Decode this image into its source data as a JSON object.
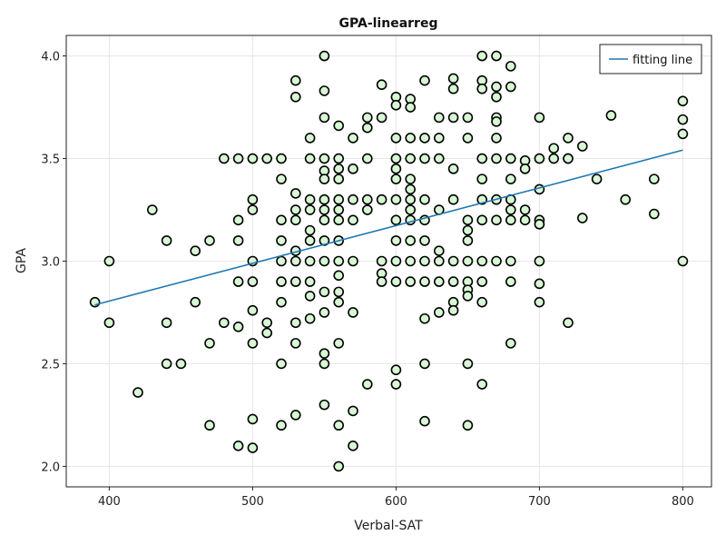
{
  "chart_data": {
    "type": "scatter",
    "title": "GPA-linearreg",
    "xlabel": "Verbal-SAT",
    "ylabel": "GPA",
    "xlim": [
      370,
      820
    ],
    "ylim": [
      1.9,
      4.1
    ],
    "xticks": [
      400,
      500,
      600,
      700,
      800
    ],
    "yticks": [
      2.0,
      2.5,
      3.0,
      3.5,
      4.0
    ],
    "ytick_labels": [
      "2.0",
      "2.5",
      "3.0",
      "3.5",
      "4.0"
    ],
    "grid": true,
    "legend_position": "top-right",
    "colors": {
      "point_fill": "#d8f7d4",
      "point_edge": "#000000",
      "line": "#1f77b4"
    },
    "series": [
      {
        "type": "scatter",
        "points": [
          [
            390,
            2.8
          ],
          [
            400,
            3.0
          ],
          [
            400,
            2.7
          ],
          [
            420,
            2.36
          ],
          [
            430,
            3.25
          ],
          [
            440,
            3.1
          ],
          [
            440,
            2.7
          ],
          [
            440,
            2.5
          ],
          [
            450,
            2.5
          ],
          [
            460,
            3.05
          ],
          [
            460,
            2.8
          ],
          [
            470,
            3.1
          ],
          [
            470,
            2.6
          ],
          [
            470,
            2.2
          ],
          [
            480,
            3.5
          ],
          [
            480,
            2.7
          ],
          [
            490,
            3.5
          ],
          [
            490,
            3.2
          ],
          [
            490,
            3.1
          ],
          [
            490,
            2.9
          ],
          [
            490,
            2.68
          ],
          [
            490,
            2.1
          ],
          [
            500,
            3.5
          ],
          [
            500,
            3.3
          ],
          [
            500,
            3.25
          ],
          [
            500,
            3.0
          ],
          [
            500,
            2.9
          ],
          [
            500,
            2.76
          ],
          [
            500,
            2.6
          ],
          [
            500,
            2.23
          ],
          [
            500,
            2.09
          ],
          [
            510,
            3.5
          ],
          [
            510,
            2.7
          ],
          [
            510,
            2.65
          ],
          [
            520,
            3.5
          ],
          [
            520,
            3.4
          ],
          [
            520,
            3.2
          ],
          [
            520,
            3.1
          ],
          [
            520,
            3.0
          ],
          [
            520,
            2.9
          ],
          [
            520,
            2.8
          ],
          [
            520,
            2.5
          ],
          [
            520,
            2.2
          ],
          [
            530,
            3.88
          ],
          [
            530,
            3.8
          ],
          [
            530,
            3.33
          ],
          [
            530,
            3.25
          ],
          [
            530,
            3.2
          ],
          [
            530,
            3.05
          ],
          [
            530,
            3.0
          ],
          [
            530,
            2.9
          ],
          [
            530,
            2.7
          ],
          [
            530,
            2.6
          ],
          [
            530,
            2.25
          ],
          [
            540,
            3.6
          ],
          [
            540,
            3.5
          ],
          [
            540,
            3.3
          ],
          [
            540,
            3.25
          ],
          [
            540,
            3.15
          ],
          [
            540,
            3.1
          ],
          [
            540,
            3.0
          ],
          [
            540,
            2.9
          ],
          [
            540,
            2.83
          ],
          [
            540,
            2.72
          ],
          [
            550,
            4.0
          ],
          [
            550,
            3.83
          ],
          [
            550,
            3.7
          ],
          [
            550,
            3.5
          ],
          [
            550,
            3.44
          ],
          [
            550,
            3.4
          ],
          [
            550,
            3.3
          ],
          [
            550,
            3.25
          ],
          [
            550,
            3.2
          ],
          [
            550,
            3.1
          ],
          [
            550,
            3.0
          ],
          [
            550,
            2.85
          ],
          [
            550,
            2.75
          ],
          [
            550,
            2.55
          ],
          [
            550,
            2.5
          ],
          [
            550,
            2.3
          ],
          [
            560,
            3.66
          ],
          [
            560,
            3.5
          ],
          [
            560,
            3.45
          ],
          [
            560,
            3.4
          ],
          [
            560,
            3.3
          ],
          [
            560,
            3.25
          ],
          [
            560,
            3.2
          ],
          [
            560,
            3.1
          ],
          [
            560,
            3.0
          ],
          [
            560,
            2.93
          ],
          [
            560,
            2.85
          ],
          [
            560,
            2.8
          ],
          [
            560,
            2.6
          ],
          [
            560,
            2.2
          ],
          [
            560,
            2.0
          ],
          [
            570,
            3.6
          ],
          [
            570,
            3.45
          ],
          [
            570,
            3.3
          ],
          [
            570,
            3.2
          ],
          [
            570,
            3.0
          ],
          [
            570,
            2.75
          ],
          [
            570,
            2.27
          ],
          [
            570,
            2.1
          ],
          [
            580,
            3.7
          ],
          [
            580,
            3.65
          ],
          [
            580,
            3.5
          ],
          [
            580,
            3.3
          ],
          [
            580,
            3.25
          ],
          [
            580,
            2.4
          ],
          [
            590,
            3.86
          ],
          [
            590,
            3.7
          ],
          [
            590,
            3.3
          ],
          [
            590,
            3.0
          ],
          [
            590,
            2.94
          ],
          [
            590,
            2.9
          ],
          [
            600,
            3.8
          ],
          [
            600,
            3.76
          ],
          [
            600,
            3.6
          ],
          [
            600,
            3.5
          ],
          [
            600,
            3.45
          ],
          [
            600,
            3.4
          ],
          [
            600,
            3.3
          ],
          [
            600,
            3.2
          ],
          [
            600,
            3.1
          ],
          [
            600,
            3.0
          ],
          [
            600,
            2.9
          ],
          [
            600,
            2.47
          ],
          [
            600,
            2.4
          ],
          [
            610,
            3.79
          ],
          [
            610,
            3.75
          ],
          [
            610,
            3.6
          ],
          [
            610,
            3.5
          ],
          [
            610,
            3.4
          ],
          [
            610,
            3.35
          ],
          [
            610,
            3.3
          ],
          [
            610,
            3.25
          ],
          [
            610,
            3.2
          ],
          [
            610,
            3.1
          ],
          [
            610,
            3.0
          ],
          [
            610,
            2.9
          ],
          [
            620,
            3.88
          ],
          [
            620,
            3.6
          ],
          [
            620,
            3.5
          ],
          [
            620,
            3.3
          ],
          [
            620,
            3.2
          ],
          [
            620,
            3.1
          ],
          [
            620,
            3.0
          ],
          [
            620,
            2.9
          ],
          [
            620,
            2.72
          ],
          [
            620,
            2.5
          ],
          [
            620,
            2.22
          ],
          [
            630,
            3.7
          ],
          [
            630,
            3.6
          ],
          [
            630,
            3.5
          ],
          [
            630,
            3.25
          ],
          [
            630,
            3.05
          ],
          [
            630,
            3.0
          ],
          [
            630,
            2.9
          ],
          [
            630,
            2.75
          ],
          [
            640,
            3.89
          ],
          [
            640,
            3.84
          ],
          [
            640,
            3.7
          ],
          [
            640,
            3.45
          ],
          [
            640,
            3.3
          ],
          [
            640,
            3.0
          ],
          [
            640,
            2.9
          ],
          [
            640,
            2.8
          ],
          [
            640,
            2.76
          ],
          [
            650,
            3.7
          ],
          [
            650,
            3.6
          ],
          [
            650,
            3.2
          ],
          [
            650,
            3.15
          ],
          [
            650,
            3.1
          ],
          [
            650,
            3.0
          ],
          [
            650,
            2.9
          ],
          [
            650,
            2.86
          ],
          [
            650,
            2.83
          ],
          [
            650,
            2.5
          ],
          [
            650,
            2.2
          ],
          [
            660,
            4.0
          ],
          [
            660,
            3.88
          ],
          [
            660,
            3.84
          ],
          [
            660,
            3.5
          ],
          [
            660,
            3.4
          ],
          [
            660,
            3.3
          ],
          [
            660,
            3.2
          ],
          [
            660,
            3.0
          ],
          [
            660,
            2.9
          ],
          [
            660,
            2.8
          ],
          [
            660,
            2.4
          ],
          [
            670,
            4.0
          ],
          [
            670,
            3.85
          ],
          [
            670,
            3.8
          ],
          [
            670,
            3.7
          ],
          [
            670,
            3.68
          ],
          [
            670,
            3.6
          ],
          [
            670,
            3.5
          ],
          [
            670,
            3.3
          ],
          [
            670,
            3.2
          ],
          [
            670,
            3.0
          ],
          [
            680,
            3.95
          ],
          [
            680,
            3.85
          ],
          [
            680,
            3.5
          ],
          [
            680,
            3.4
          ],
          [
            680,
            3.3
          ],
          [
            680,
            3.25
          ],
          [
            680,
            3.2
          ],
          [
            680,
            3.0
          ],
          [
            680,
            2.9
          ],
          [
            680,
            2.6
          ],
          [
            690,
            3.49
          ],
          [
            690,
            3.45
          ],
          [
            690,
            3.25
          ],
          [
            690,
            3.2
          ],
          [
            700,
            3.7
          ],
          [
            700,
            3.5
          ],
          [
            700,
            3.35
          ],
          [
            700,
            3.2
          ],
          [
            700,
            3.18
          ],
          [
            700,
            3.0
          ],
          [
            700,
            2.89
          ],
          [
            700,
            2.8
          ],
          [
            710,
            3.55
          ],
          [
            710,
            3.5
          ],
          [
            720,
            3.6
          ],
          [
            720,
            3.5
          ],
          [
            720,
            3.5
          ],
          [
            720,
            2.7
          ],
          [
            730,
            3.56
          ],
          [
            730,
            3.21
          ],
          [
            740,
            3.4
          ],
          [
            750,
            3.71
          ],
          [
            760,
            3.3
          ],
          [
            780,
            3.4
          ],
          [
            780,
            3.23
          ],
          [
            800,
            3.78
          ],
          [
            800,
            3.69
          ],
          [
            800,
            3.62
          ],
          [
            800,
            3.0
          ]
        ]
      },
      {
        "type": "line",
        "name": "fitting line",
        "x": [
          390,
          800
        ],
        "y": [
          2.787,
          3.541
        ]
      }
    ]
  }
}
